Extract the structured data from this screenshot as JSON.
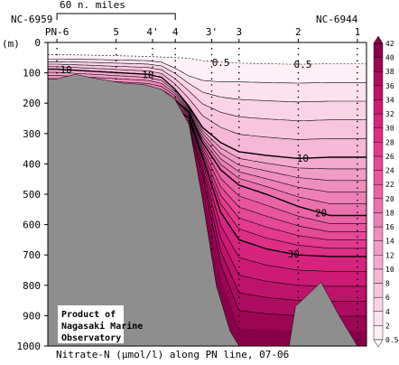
{
  "chart_data": {
    "type": "contour",
    "title": "Nitrate-N (µmol/l) along PN line, 07-06",
    "ylabel": "(m)",
    "ylim": [
      0,
      1000
    ],
    "y_ticks": [
      0,
      100,
      200,
      300,
      400,
      500,
      600,
      700,
      800,
      900,
      1000
    ],
    "stations": [
      {
        "label": "PN-6",
        "x_km": 0
      },
      {
        "label": "5",
        "x_km": 65
      },
      {
        "label": "4'",
        "x_km": 105
      },
      {
        "label": "4",
        "x_km": 130
      },
      {
        "label": "3'",
        "x_km": 170
      },
      {
        "label": "3",
        "x_km": 200
      },
      {
        "label": "2",
        "x_km": 265
      },
      {
        "label": "1",
        "x_km": 330
      }
    ],
    "end_labels": {
      "left": "NC-6959",
      "right": "NC-6944"
    },
    "scale_bar": {
      "label": "60 n. miles",
      "start_km": 0,
      "end_km": 130
    },
    "contour_levels": [
      0.5,
      2,
      4,
      6,
      8,
      10,
      12,
      14,
      16,
      18,
      20,
      22,
      24,
      26,
      28,
      30,
      32,
      34,
      36,
      38,
      40,
      42
    ],
    "colorbar_labels": [
      "0.5",
      "2",
      "4",
      "6",
      "8",
      "10",
      "12",
      "14",
      "16",
      "18",
      "20",
      "22",
      "24",
      "26",
      "28",
      "30",
      "32",
      "34",
      "36",
      "38",
      "40",
      "42"
    ],
    "highlighted_contours": [
      {
        "value": 10,
        "label": "10"
      },
      {
        "value": 20,
        "label": "20"
      },
      {
        "value": 30,
        "label": "30"
      }
    ],
    "contour_labels": [
      "0.5",
      "0.5",
      "10",
      "10",
      "10",
      "20",
      "30"
    ],
    "bottom_depth_m": [
      {
        "x_km": 0,
        "depth": 120
      },
      {
        "x_km": 20,
        "depth": 105
      },
      {
        "x_km": 45,
        "depth": 120
      },
      {
        "x_km": 75,
        "depth": 135
      },
      {
        "x_km": 95,
        "depth": 138
      },
      {
        "x_km": 115,
        "depth": 155
      },
      {
        "x_km": 130,
        "depth": 190
      },
      {
        "x_km": 145,
        "depth": 270
      },
      {
        "x_km": 160,
        "depth": 520
      },
      {
        "x_km": 175,
        "depth": 800
      },
      {
        "x_km": 190,
        "depth": 950
      },
      {
        "x_km": 200,
        "depth": 1000
      },
      {
        "x_km": 255,
        "depth": 1000
      },
      {
        "x_km": 262,
        "depth": 870
      },
      {
        "x_km": 290,
        "depth": 790
      },
      {
        "x_km": 310,
        "depth": 900
      },
      {
        "x_km": 330,
        "depth": 1000
      }
    ],
    "colormap": [
      "#ffffff",
      "#fdf0f6",
      "#fbe2ee",
      "#f9d4e6",
      "#f7c6de",
      "#f5b8d6",
      "#f3aace",
      "#f19cc6",
      "#ef8ebe",
      "#ed80b6",
      "#eb72ae",
      "#e964a6",
      "#e7569e",
      "#e54896",
      "#e33a8e",
      "#de2e86",
      "#d6247e",
      "#cc1a75",
      "#be136b",
      "#ae0c60",
      "#9c0655",
      "#880049"
    ],
    "bottom_color": "#8e8e8e"
  },
  "note": {
    "line1": "Product of",
    "line2": "Nagasaki Marine",
    "line3": "Observatory"
  }
}
